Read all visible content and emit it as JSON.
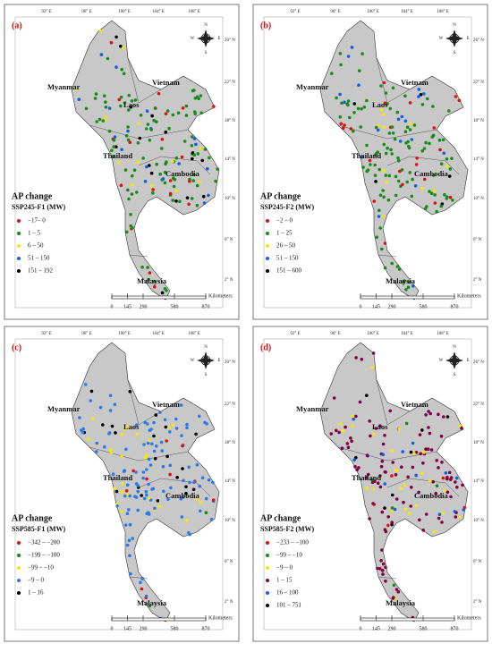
{
  "map": {
    "longitudes": [
      "92° E",
      "96° E",
      "100° E",
      "104° E",
      "108° E"
    ],
    "latitudes": [
      "26° N",
      "22° N",
      "18° N",
      "14° N",
      "10° N",
      "6° N",
      "2° N"
    ],
    "countries": [
      "Myanmar",
      "Vietnam",
      "Laos",
      "Thailand",
      "Cambodia",
      "Malaysia"
    ],
    "compass": [
      "N",
      "S",
      "W",
      "E"
    ],
    "scale": {
      "ticks": [
        0,
        145,
        290,
        580,
        870
      ],
      "unit": "Kilometers"
    }
  },
  "panels": [
    {
      "label": "(a)",
      "legend_title": "AP change",
      "legend_subtitle": "SSP245-F1 (MW)",
      "legend": [
        {
          "label": "−17– 0",
          "color": "#e01010"
        },
        {
          "label": "1 – 5",
          "color": "#1a8a1a"
        },
        {
          "label": "6 – 50",
          "color": "#f5e60a"
        },
        {
          "label": "51 – 150",
          "color": "#1060e0"
        },
        {
          "label": "151 – 192",
          "color": "#000000"
        }
      ]
    },
    {
      "label": "(b)",
      "legend_title": "AP change",
      "legend_subtitle": "SSP245-F2 (MW)",
      "legend": [
        {
          "label": "−2 – 0",
          "color": "#e01010"
        },
        {
          "label": "1 – 25",
          "color": "#1a8a1a"
        },
        {
          "label": "26 – 50",
          "color": "#f5e60a"
        },
        {
          "label": "51 – 150",
          "color": "#1060e0"
        },
        {
          "label": "151 – 600",
          "color": "#000000"
        }
      ]
    },
    {
      "label": "(c)",
      "legend_title": "AP change",
      "legend_subtitle": "SSP585-F1 (MW)",
      "legend": [
        {
          "label": "−342 – −200",
          "color": "#e01010"
        },
        {
          "label": "−199 – −100",
          "color": "#1a8a1a"
        },
        {
          "label": "−99 – −10",
          "color": "#f5e60a"
        },
        {
          "label": "−9 – 0",
          "color": "#2a7be8"
        },
        {
          "label": "1 – 16",
          "color": "#000000"
        }
      ]
    },
    {
      "label": "(d)",
      "legend_title": "AP change",
      "legend_subtitle": "SSP585-F2 (MW)",
      "legend": [
        {
          "label": "−233 – −100",
          "color": "#e01010"
        },
        {
          "label": "−99 – −10",
          "color": "#1a8a1a"
        },
        {
          "label": "−9 – 0",
          "color": "#f5e60a"
        },
        {
          "label": "1 – 15",
          "color": "#800040"
        },
        {
          "label": "16 – 100",
          "color": "#1060e0"
        },
        {
          "label": "101 – 751",
          "color": "#000000"
        }
      ]
    }
  ]
}
